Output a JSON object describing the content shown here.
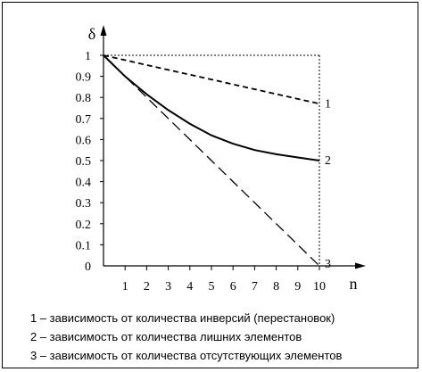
{
  "chart_data": {
    "type": "line",
    "ylabel": "δ",
    "xlabel": "n",
    "xlim": [
      0,
      10
    ],
    "ylim": [
      0,
      1
    ],
    "x_ticks": [
      "1",
      "2",
      "3",
      "4",
      "5",
      "6",
      "7",
      "8",
      "9",
      "10"
    ],
    "y_ticks": [
      "0",
      "0.1",
      "0.2",
      "0.3",
      "0.4",
      "0.5",
      "0.6",
      "0.7",
      "0.8",
      "0.9",
      "1"
    ],
    "series": [
      {
        "name": "1",
        "style": "short-dash",
        "x": [
          0,
          1,
          2,
          3,
          4,
          5,
          6,
          7,
          8,
          9,
          10
        ],
        "y": [
          1,
          0.977,
          0.954,
          0.931,
          0.908,
          0.885,
          0.862,
          0.839,
          0.816,
          0.793,
          0.77
        ]
      },
      {
        "name": "2",
        "style": "solid",
        "x": [
          0,
          1,
          2,
          3,
          4,
          5,
          6,
          7,
          8,
          9,
          10
        ],
        "y": [
          1,
          0.9,
          0.815,
          0.74,
          0.675,
          0.62,
          0.58,
          0.55,
          0.53,
          0.515,
          0.5
        ]
      },
      {
        "name": "3",
        "style": "long-dash",
        "x": [
          0,
          1,
          2,
          3,
          4,
          5,
          6,
          7,
          8,
          9,
          10
        ],
        "y": [
          1,
          0.9,
          0.8,
          0.7,
          0.6,
          0.5,
          0.4,
          0.3,
          0.2,
          0.1,
          0
        ]
      }
    ],
    "legend": [
      "1 – зависимость от количества инверсий (перестановок)",
      "2 – зависимость от количества лишних элементов",
      "3 – зависимость от количества отсутствующих элементов"
    ],
    "grid": false,
    "reference_box": "dotted"
  }
}
